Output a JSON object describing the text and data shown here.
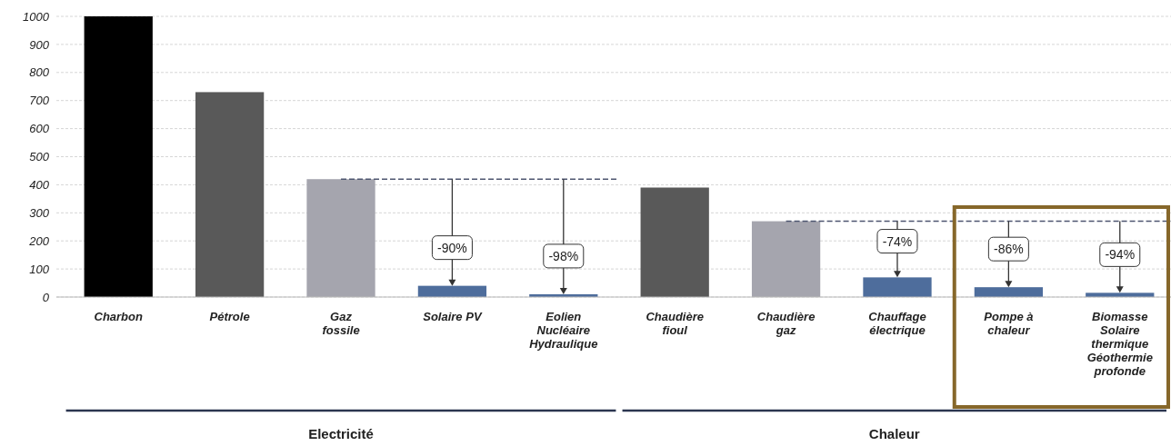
{
  "chart_data": {
    "type": "bar",
    "categories": [
      "Charbon",
      "Pétrole",
      "Gaz\nfossile",
      "Solaire PV",
      "Eolien\nNucléaire\nHydraulique",
      "Chaudière\nfioul",
      "Chaudière\ngaz",
      "Chauffage\nélectrique",
      "Pompe à\nchaleur",
      "Biomasse\nSolaire\nthermique\nGéothermie\nprofonde"
    ],
    "values": [
      1000,
      730,
      420,
      40,
      10,
      390,
      270,
      70,
      35,
      15
    ],
    "colors": [
      "#000000",
      "#595959",
      "#a5a5ae",
      "#4e6d9c",
      "#4e6d9c",
      "#595959",
      "#a5a5ae",
      "#4e6d9c",
      "#4e6d9c",
      "#4e6d9c"
    ],
    "ylim": [
      0,
      1000
    ],
    "yticks": [
      0,
      100,
      200,
      300,
      400,
      500,
      600,
      700,
      800,
      900,
      1000
    ],
    "grid": "y",
    "ref_lines": [
      {
        "axis": "y",
        "value": 420,
        "color": "#4e5670",
        "line_style": "dashed"
      },
      {
        "axis": "y",
        "value": 270,
        "color": "#4e5670",
        "line_style": "dashed"
      }
    ],
    "annotations": [
      {
        "text": "-90%",
        "x": "Solaire PV",
        "y": 40
      },
      {
        "text": "-98%",
        "x": "Eolien\nNucléaire\nHydraulique",
        "y": 10
      },
      {
        "text": "-74%",
        "x": "Chauffage\nélectrique",
        "y": 70
      },
      {
        "text": "-86%",
        "x": "Pompe à\nchaleur",
        "y": 35
      },
      {
        "text": "-94%",
        "x": "Biomasse\nSolaire\nthermique\nGéothermie\nprofonde",
        "y": 15
      },
      "Electricité",
      "Chaleur"
    ]
  }
}
